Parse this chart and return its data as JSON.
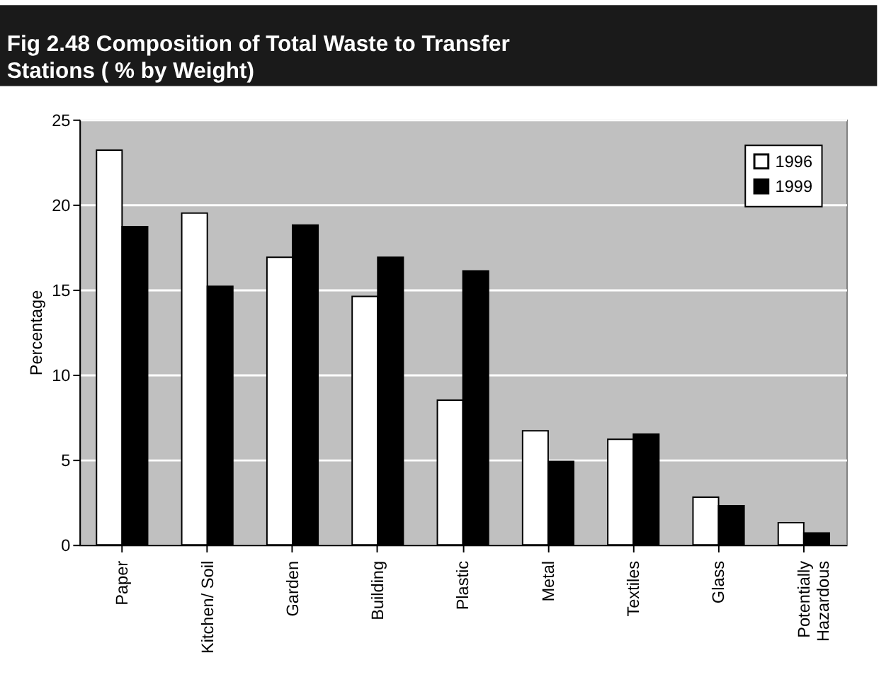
{
  "chart_data": {
    "type": "bar",
    "title": "Fig 2.48  Composition of Total Waste to Transfer\nStations ( % by Weight)",
    "ylabel": "Percentage",
    "categories": [
      "Paper",
      "Kitchen/ Soil",
      "Garden",
      "Building",
      "Plastic",
      "Metal",
      "Textiles",
      "Glass",
      "Potentially Hazardous"
    ],
    "series": [
      {
        "name": "1996",
        "color": "#ffffff",
        "values": [
          23.2,
          19.5,
          16.9,
          14.6,
          8.5,
          6.7,
          6.2,
          2.8,
          1.3
        ]
      },
      {
        "name": "1999",
        "color": "#000000",
        "values": [
          18.7,
          15.2,
          18.8,
          16.9,
          16.1,
          4.9,
          6.5,
          2.3,
          0.7
        ]
      }
    ],
    "ylim": [
      0,
      25
    ],
    "yticks": [
      0,
      5,
      10,
      15,
      20,
      25
    ],
    "grid": "y",
    "legend": "top right"
  }
}
